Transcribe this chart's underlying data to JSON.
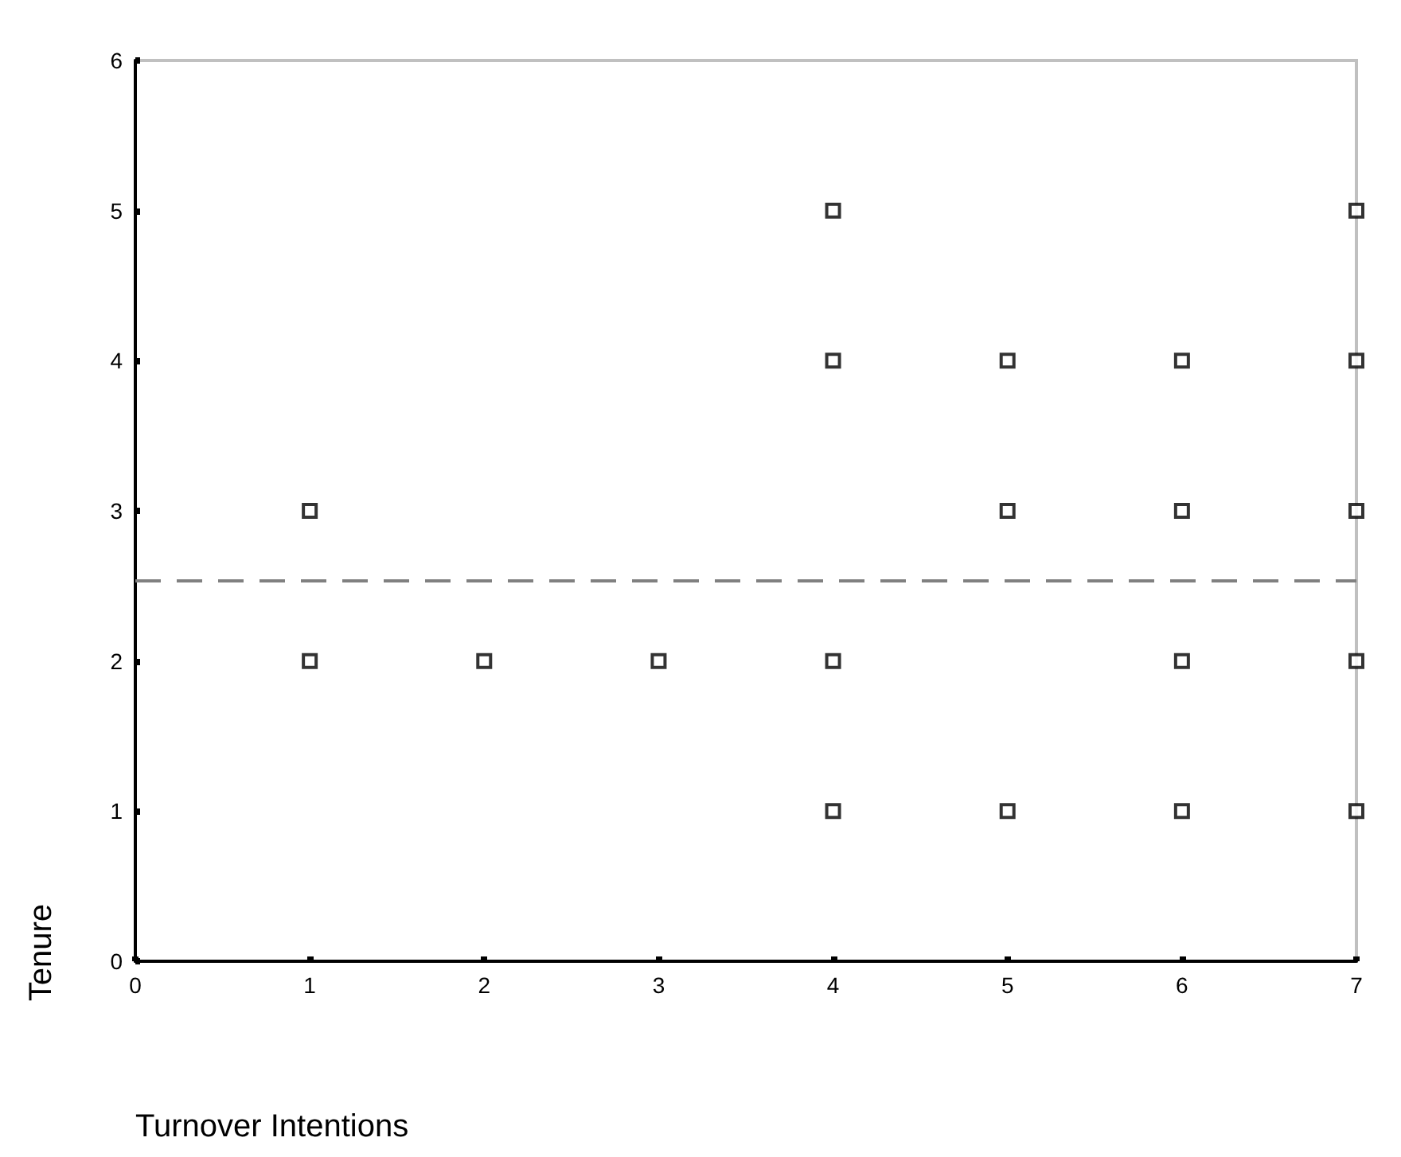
{
  "chart_data": {
    "type": "scatter",
    "xlabel": "Turnover Intentions",
    "ylabel": "Tenure",
    "x": [
      1,
      1,
      2,
      3,
      4,
      4,
      4,
      4,
      5,
      5,
      5,
      6,
      6,
      6,
      6,
      7,
      7,
      7,
      7,
      7
    ],
    "values": [
      3,
      2,
      2,
      2,
      5,
      4,
      2,
      1,
      4,
      3,
      1,
      4,
      3,
      2,
      1,
      5,
      4,
      3,
      2,
      1
    ],
    "color": "#000000",
    "marker": "square",
    "xlim": [
      0,
      7
    ],
    "xticks": [
      0,
      1,
      2,
      3,
      4,
      5,
      6,
      7
    ],
    "ylim": [
      0,
      6
    ],
    "yticks": [
      0,
      1,
      2,
      3,
      4,
      5,
      6
    ],
    "ref_lines": [
      {
        "axis": "y",
        "value": 2.54,
        "color": "#808080",
        "line_style": "dashed"
      }
    ],
    "grid": false
  }
}
